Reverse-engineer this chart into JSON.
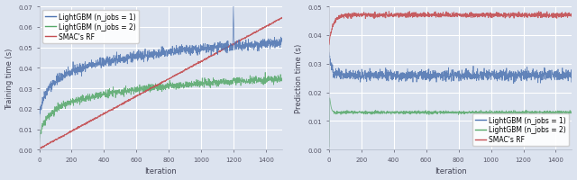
{
  "fig_width": 6.4,
  "fig_height": 2.01,
  "dpi": 100,
  "background_color": "#dce3ef",
  "grid_color": "white",
  "left_plot": {
    "xlabel": "Iteration",
    "ylabel": "Training time (s)",
    "xlim": [
      0,
      1500
    ],
    "ylim": [
      0.0,
      0.07
    ],
    "yticks": [
      0.0,
      0.01,
      0.02,
      0.03,
      0.04,
      0.05,
      0.06,
      0.07
    ],
    "xticks": [
      0,
      200,
      400,
      600,
      800,
      1000,
      1200,
      1400
    ],
    "blue_label": "LightGBM (n_jobs = 1)",
    "green_label": "LightGBM (n_jobs = 2)",
    "red_label": "SMAC's RF",
    "blue_color": "#4c72b0",
    "green_color": "#55a868",
    "red_color": "#c44e52",
    "legend_loc": "upper left",
    "legend_fontsize": 5.5
  },
  "right_plot": {
    "xlabel": "Iteration",
    "ylabel": "Prediction time (s)",
    "xlim": [
      0,
      1500
    ],
    "ylim": [
      0.0,
      0.05
    ],
    "yticks": [
      0.0,
      0.01,
      0.02,
      0.03,
      0.04,
      0.05
    ],
    "xticks": [
      0,
      200,
      400,
      600,
      800,
      1000,
      1200,
      1400
    ],
    "blue_label": "LightGBM (n_jobs = 1)",
    "green_label": "LightGBM (n_jobs = 2)",
    "red_label": "SMAC's RF",
    "blue_color": "#4c72b0",
    "green_color": "#55a868",
    "red_color": "#c44e52",
    "legend_loc": "lower right",
    "legend_fontsize": 5.5
  }
}
